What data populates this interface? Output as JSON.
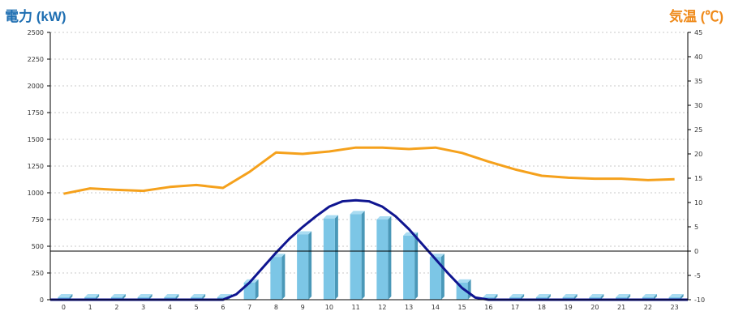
{
  "chart_data": {
    "type": "bar+line",
    "title": "",
    "left_axis": {
      "label": "電力 (kW)",
      "ylim": [
        0,
        2500
      ],
      "ticks": [
        0,
        250,
        500,
        750,
        1000,
        1250,
        1500,
        1750,
        2000,
        2250,
        2500
      ]
    },
    "right_axis": {
      "label": "気温 (℃)",
      "ylim": [
        -10,
        45
      ],
      "ticks": [
        -10,
        -5,
        0,
        5,
        10,
        15,
        20,
        25,
        30,
        35,
        40,
        45
      ]
    },
    "grid": true,
    "categories": [
      "0",
      "1",
      "2",
      "3",
      "4",
      "5",
      "6",
      "7",
      "8",
      "9",
      "10",
      "11",
      "12",
      "13",
      "14",
      "15",
      "16",
      "17",
      "18",
      "19",
      "20",
      "21",
      "22",
      "23"
    ],
    "series": [
      {
        "kind": "bar",
        "axis": "left",
        "values": [
          0,
          0,
          0,
          0,
          0,
          0,
          0,
          160,
          400,
          610,
          760,
          800,
          750,
          600,
          400,
          160,
          0,
          0,
          0,
          0,
          0,
          0,
          0,
          0
        ]
      },
      {
        "kind": "smooth-line",
        "axis": "left",
        "x": [
          6,
          6.5,
          7,
          7.5,
          8,
          8.5,
          9,
          9.5,
          10,
          10.5,
          11,
          11.5,
          12,
          12.5,
          13,
          13.5,
          14,
          14.5,
          15,
          15.5,
          16
        ],
        "values": [
          0,
          50,
          160,
          300,
          440,
          570,
          680,
          780,
          870,
          920,
          930,
          920,
          870,
          780,
          660,
          520,
          380,
          240,
          110,
          20,
          0
        ]
      },
      {
        "kind": "line",
        "axis": "right",
        "values": [
          11.8,
          12.9,
          12.6,
          12.4,
          13.2,
          13.6,
          13.0,
          16.3,
          20.3,
          20.0,
          20.5,
          21.3,
          21.3,
          21.0,
          21.3,
          20.2,
          18.4,
          16.8,
          15.5,
          15.1,
          14.9,
          14.9,
          14.6,
          14.8
        ]
      }
    ],
    "colors": {
      "bar": "#7cc6e6",
      "bar_top": "#a9dcf2",
      "bar_side": "#4a98b8",
      "output_line": "#0f1590",
      "temp_line": "#f5a11c",
      "left_title": "#1f6fb2",
      "right_title": "#ef8a1a"
    }
  }
}
